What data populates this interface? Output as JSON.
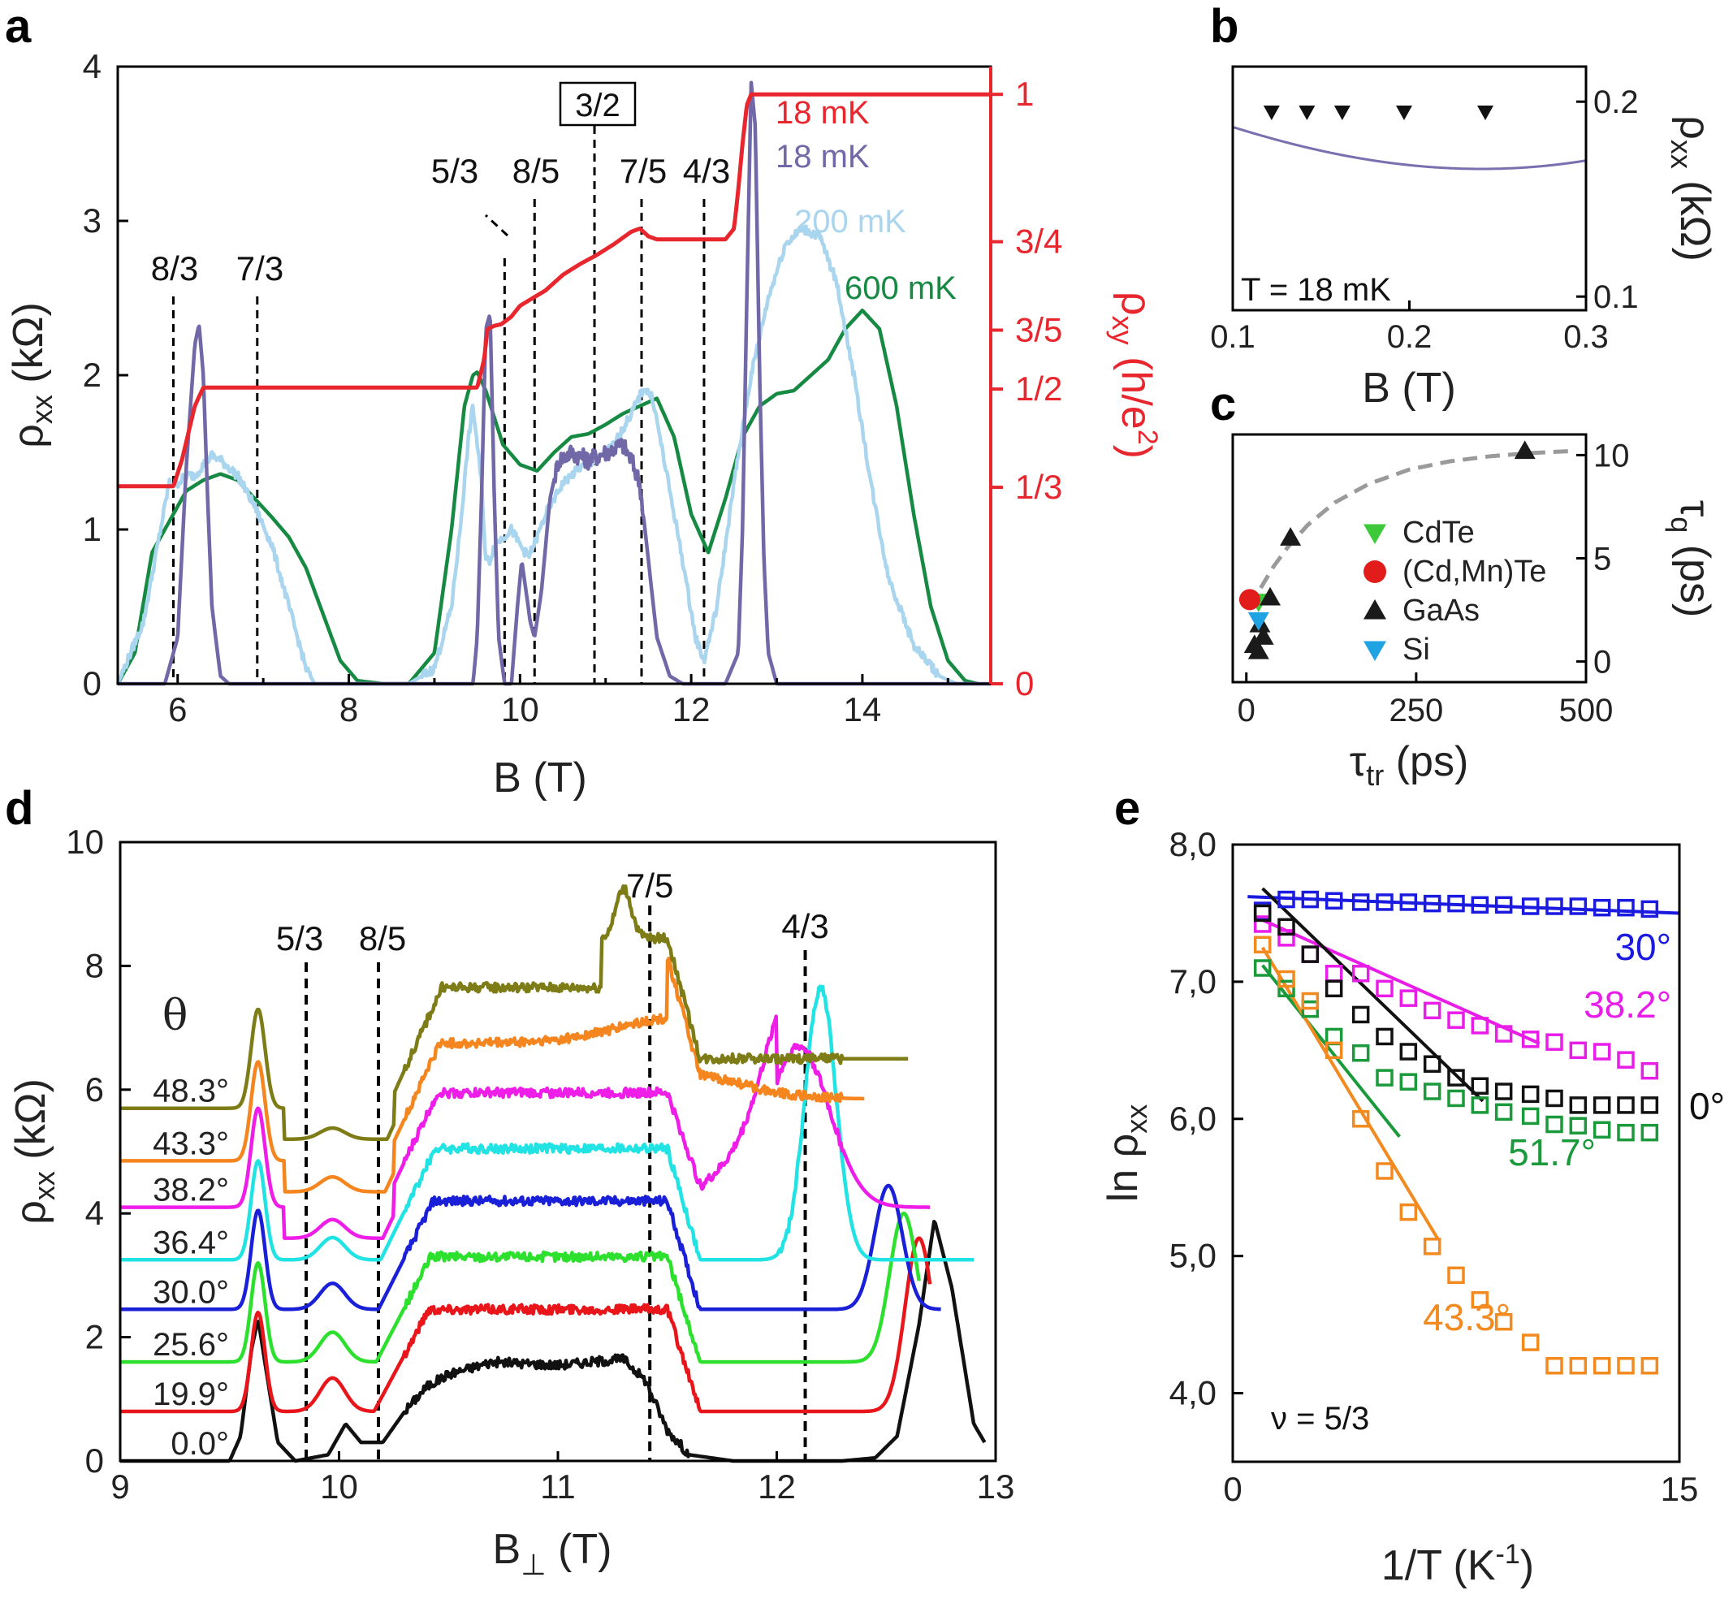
{
  "chart_data": [
    {
      "panel": "a",
      "type": "line",
      "xlabel": "B (T)",
      "ylabel": "ρxx (kΩ)",
      "y2label": "ρxy (h/e2)",
      "xlim": [
        5.3,
        15.5
      ],
      "ylim": [
        0,
        4
      ],
      "xticks": [
        "6",
        "8",
        "10",
        "12",
        "14"
      ],
      "yticks": [
        "0",
        "1",
        "2",
        "3",
        "4"
      ],
      "y2ticks": [
        "0",
        "1/3",
        "1/2",
        "3/5",
        "3/4",
        "1"
      ],
      "fraction_labels": [
        "8/3",
        "7/3",
        "5/3",
        "8/5",
        "3/2",
        "7/5",
        "4/3"
      ],
      "fraction_positions": [
        5.95,
        6.93,
        9.82,
        10.17,
        10.87,
        11.42,
        12.15
      ],
      "legend": [
        "18 mK",
        "18 mK",
        "200 mK",
        "600 mK"
      ],
      "colors": [
        "#e8262d",
        "#7168a8",
        "#a9d5ee",
        "#168a43"
      ],
      "series": [
        {
          "name": "ρxy 18 mK",
          "color": "#e8262d",
          "x": [
            5.3,
            5.95,
            6.05,
            6.2,
            6.3,
            9.5,
            9.58,
            9.62,
            9.7,
            9.78,
            9.9,
            10.0,
            10.15,
            10.3,
            10.5,
            10.7,
            10.9,
            11.1,
            11.3,
            11.4,
            11.5,
            11.6,
            12.4,
            12.5,
            12.55,
            12.6,
            12.65,
            12.7,
            15.5
          ],
          "values": [
            1.28,
            1.28,
            1.45,
            1.8,
            1.92,
            1.92,
            2.1,
            2.3,
            2.32,
            2.33,
            2.38,
            2.45,
            2.5,
            2.55,
            2.65,
            2.72,
            2.78,
            2.85,
            2.93,
            2.95,
            2.9,
            2.88,
            2.88,
            2.95,
            3.2,
            3.5,
            3.75,
            3.82,
            3.82
          ]
        },
        {
          "name": "ρxx 18 mK",
          "color": "#7168a8",
          "x": [
            5.3,
            5.85,
            6.0,
            6.1,
            6.2,
            6.25,
            6.3,
            6.35,
            6.4,
            6.5,
            6.6,
            9.45,
            9.5,
            9.55,
            9.6,
            9.65,
            9.7,
            9.75,
            9.82,
            9.9,
            9.97,
            10.02,
            10.07,
            10.12,
            10.17,
            10.25,
            10.35,
            10.45,
            10.6,
            10.8,
            11.0,
            11.2,
            11.3,
            11.4,
            11.5,
            11.6,
            11.75,
            11.9,
            12.4,
            12.55,
            12.6,
            12.65,
            12.7,
            12.75,
            12.8,
            12.85,
            12.9,
            13.0,
            15.5
          ],
          "values": [
            0,
            0,
            0.3,
            1.4,
            2.2,
            2.33,
            2.0,
            1.2,
            0.5,
            0.05,
            0,
            0,
            0.3,
            1.2,
            2.3,
            2.4,
            1.2,
            0.3,
            0,
            0,
            0.5,
            0.8,
            0.6,
            0.4,
            0.3,
            0.6,
            1.2,
            1.45,
            1.5,
            1.45,
            1.5,
            1.55,
            1.45,
            1.3,
            0.8,
            0.3,
            0.05,
            0,
            0,
            0.2,
            1.0,
            2.5,
            3.9,
            3.6,
            2.0,
            0.8,
            0.2,
            0,
            0
          ]
        },
        {
          "name": "ρxx 200 mK",
          "color": "#a9d5ee",
          "x": [
            5.3,
            5.6,
            5.8,
            5.9,
            6.0,
            6.1,
            6.2,
            6.3,
            6.4,
            6.5,
            6.7,
            6.9,
            7.1,
            7.3,
            7.5,
            7.6,
            8.7,
            9.0,
            9.2,
            9.3,
            9.4,
            9.45,
            9.55,
            9.6,
            9.65,
            9.7,
            9.8,
            9.9,
            10.0,
            10.1,
            10.2,
            10.3,
            10.5,
            10.7,
            10.9,
            11.1,
            11.3,
            11.45,
            11.55,
            11.7,
            11.9,
            12.05,
            12.15,
            12.3,
            12.5,
            12.7,
            12.9,
            13.1,
            13.3,
            13.5,
            13.7,
            13.9,
            14.1,
            14.3,
            14.6,
            14.9,
            15.1,
            15.2
          ],
          "values": [
            0,
            0.4,
            1.0,
            1.3,
            1.3,
            1.35,
            1.35,
            1.42,
            1.48,
            1.45,
            1.35,
            1.15,
            0.9,
            0.5,
            0.1,
            0,
            0,
            0.1,
            0.5,
            1.0,
            1.6,
            1.8,
            1.3,
            0.8,
            0.8,
            0.9,
            0.95,
            1.0,
            0.9,
            0.82,
            0.95,
            1.1,
            1.3,
            1.4,
            1.45,
            1.55,
            1.75,
            1.92,
            1.85,
            1.4,
            0.8,
            0.3,
            0.15,
            0.5,
            1.3,
            2.0,
            2.5,
            2.85,
            2.95,
            2.9,
            2.6,
            2.0,
            1.3,
            0.7,
            0.25,
            0.05,
            0,
            0
          ]
        },
        {
          "name": "ρxx 600 mK",
          "color": "#168a43",
          "x": [
            5.3,
            5.5,
            5.7,
            5.9,
            6.1,
            6.3,
            6.5,
            6.7,
            6.9,
            7.1,
            7.3,
            7.5,
            7.7,
            7.9,
            8.1,
            8.4,
            8.7,
            9.0,
            9.2,
            9.35,
            9.45,
            9.5,
            9.6,
            9.8,
            10.0,
            10.2,
            10.4,
            10.6,
            10.8,
            11.0,
            11.2,
            11.4,
            11.6,
            11.8,
            12.0,
            12.2,
            12.4,
            12.6,
            12.8,
            13.0,
            13.2,
            13.4,
            13.6,
            13.8,
            14.0,
            14.2,
            14.4,
            14.6,
            14.8,
            15.0,
            15.2,
            15.35
          ],
          "values": [
            0,
            0.2,
            0.85,
            1.05,
            1.25,
            1.32,
            1.36,
            1.32,
            1.2,
            1.08,
            0.95,
            0.75,
            0.45,
            0.15,
            0.02,
            0,
            0,
            0.2,
            1.0,
            1.8,
            2.0,
            2.02,
            1.9,
            1.55,
            1.42,
            1.38,
            1.5,
            1.6,
            1.62,
            1.68,
            1.75,
            1.8,
            1.85,
            1.6,
            1.1,
            0.85,
            1.2,
            1.6,
            1.8,
            1.88,
            1.9,
            2.0,
            2.1,
            2.3,
            2.42,
            2.3,
            1.8,
            1.1,
            0.5,
            0.15,
            0.02,
            0
          ]
        }
      ]
    },
    {
      "panel": "b",
      "type": "line",
      "xlabel": "B (T)",
      "ylabel": "ρxx (kΩ)",
      "xlim": [
        0.1,
        0.3
      ],
      "ylim": [
        0.093,
        0.218
      ],
      "xticks": [
        "0.1",
        "0.2",
        "0.3"
      ],
      "yticks": [
        "0.1",
        "0.2"
      ],
      "annotation": "T = 18 mK",
      "marker_positions": [
        0.122,
        0.142,
        0.162,
        0.197,
        0.243
      ]
    },
    {
      "panel": "c",
      "type": "scatter",
      "xlabel": "τtr (ps)",
      "ylabel": "τq (ps)",
      "xlim": [
        -20,
        500
      ],
      "ylim": [
        -1,
        11
      ],
      "xticks": [
        "0",
        "250",
        "500"
      ],
      "yticks": [
        "0",
        "5",
        "10"
      ],
      "legend": [
        "CdTe",
        "(Cd,Mn)Te",
        "GaAs",
        "Si"
      ],
      "series": [
        {
          "name": "CdTe",
          "color": "#3dc93a",
          "marker": "triangle-down",
          "x": [
            18
          ],
          "values": [
            2.9
          ]
        },
        {
          "name": "(Cd,Mn)Te",
          "color": "#e21b1b",
          "marker": "circle",
          "x": [
            5
          ],
          "values": [
            3.0
          ]
        },
        {
          "name": "GaAs",
          "color": "#1a1a1a",
          "marker": "triangle-up",
          "x": [
            410,
            65,
            35,
            20,
            12,
            25,
            18
          ],
          "values": [
            10.2,
            6.0,
            3.1,
            1.8,
            0.8,
            1.2,
            0.5
          ]
        },
        {
          "name": "Si",
          "color": "#1fa3e3",
          "marker": "triangle-down",
          "x": [
            18
          ],
          "values": [
            2.0
          ]
        }
      ],
      "fit_x": [
        5,
        20,
        40,
        60,
        90,
        130,
        180,
        240,
        300,
        360,
        420,
        480
      ],
      "fit_y": [
        2.6,
        3.5,
        4.6,
        5.5,
        6.6,
        7.7,
        8.6,
        9.3,
        9.7,
        9.95,
        10.1,
        10.2
      ]
    },
    {
      "panel": "d",
      "type": "line",
      "xlabel": "B⊥ (T)",
      "ylabel": "ρxx (kΩ)",
      "xlim": [
        9,
        13
      ],
      "ylim": [
        0,
        10
      ],
      "xticks": [
        "9",
        "10",
        "11",
        "12",
        "13"
      ],
      "yticks": [
        "0",
        "2",
        "4",
        "6",
        "8",
        "10"
      ],
      "legend_title": "θ",
      "fraction_labels": [
        "5/3",
        "8/5",
        "7/5",
        "4/3"
      ],
      "fraction_positions": [
        9.85,
        10.18,
        11.42,
        12.13
      ],
      "series": [
        {
          "name": "0.0°",
          "color": "#111111",
          "offset": 0.0
        },
        {
          "name": "19.9°",
          "color": "#e8161b",
          "offset": 0.8
        },
        {
          "name": "25.6°",
          "color": "#2ee02e",
          "offset": 1.6
        },
        {
          "name": "30.0°",
          "color": "#1a1fd8",
          "offset": 2.45
        },
        {
          "name": "36.4°",
          "color": "#22e3e3",
          "offset": 3.25
        },
        {
          "name": "38.2°",
          "color": "#ee1ee8",
          "offset": 4.1
        },
        {
          "name": "43.3°",
          "color": "#f5861f",
          "offset": 4.85
        },
        {
          "name": "48.3°",
          "color": "#7d7c16",
          "offset": 5.7
        }
      ]
    },
    {
      "panel": "e",
      "type": "scatter",
      "xlabel": "1/T (K-1)",
      "ylabel": "ln ρxx",
      "xlim": [
        0,
        15
      ],
      "ylim": [
        3.5,
        8.0
      ],
      "xticks": [
        "0",
        "15"
      ],
      "yticks": [
        "4,0",
        "5,0",
        "6,0",
        "7,0",
        "8,0"
      ],
      "annotation": "ν = 5/3",
      "series": [
        {
          "name": "30°",
          "color": "#1a1ae0",
          "x": [
            1.0,
            1.8,
            2.6,
            3.4,
            4.3,
            5.1,
            5.9,
            6.7,
            7.5,
            8.3,
            9.1,
            10.0,
            10.8,
            11.6,
            12.4,
            13.2,
            14.0
          ],
          "values": [
            7.52,
            7.6,
            7.6,
            7.59,
            7.58,
            7.58,
            7.58,
            7.57,
            7.57,
            7.56,
            7.56,
            7.55,
            7.55,
            7.55,
            7.54,
            7.54,
            7.53
          ],
          "fit_x": [
            0.5,
            15
          ],
          "fit_y": [
            7.62,
            7.5
          ]
        },
        {
          "name": "38.2°",
          "color": "#e81ee8",
          "x": [
            1.0,
            1.8,
            2.6,
            3.4,
            4.3,
            5.1,
            5.9,
            6.7,
            7.5,
            8.3,
            9.1,
            10.0,
            10.8,
            11.6,
            12.4,
            13.2,
            14.0
          ],
          "values": [
            7.42,
            7.32,
            7.2,
            7.06,
            7.06,
            6.95,
            6.88,
            6.79,
            6.72,
            6.68,
            6.62,
            6.58,
            6.56,
            6.5,
            6.49,
            6.43,
            6.35
          ],
          "fit_x": [
            1.0,
            10.3
          ],
          "fit_y": [
            7.45,
            6.55
          ]
        },
        {
          "name": "0°",
          "color": "#111111",
          "x": [
            1.0,
            1.8,
            2.6,
            3.4,
            4.3,
            5.1,
            5.9,
            6.7,
            7.5,
            8.3,
            9.1,
            10.0,
            10.8,
            11.6,
            12.4,
            13.2,
            14.0
          ],
          "values": [
            7.5,
            7.4,
            7.2,
            6.95,
            6.76,
            6.6,
            6.49,
            6.4,
            6.3,
            6.24,
            6.2,
            6.18,
            6.15,
            6.1,
            6.1,
            6.1,
            6.1
          ],
          "fit_x": [
            1.0,
            8.4
          ],
          "fit_y": [
            7.68,
            6.13
          ]
        },
        {
          "name": "51.7°",
          "color": "#1a9a3a",
          "x": [
            1.0,
            1.8,
            2.6,
            3.4,
            4.3,
            5.1,
            5.9,
            6.7,
            7.5,
            8.3,
            9.1,
            10.0,
            10.8,
            11.6,
            12.4,
            13.2,
            14.0
          ],
          "values": [
            7.1,
            6.95,
            6.8,
            6.6,
            6.48,
            6.3,
            6.27,
            6.2,
            6.15,
            6.1,
            6.05,
            6.02,
            5.96,
            5.95,
            5.92,
            5.9,
            5.9
          ],
          "fit_x": [
            1.0,
            5.6
          ],
          "fit_y": [
            7.12,
            5.87
          ]
        },
        {
          "name": "43.3°",
          "color": "#f28a1f",
          "x": [
            1.0,
            1.8,
            2.6,
            3.4,
            4.3,
            5.1,
            5.9,
            6.7,
            7.5,
            8.3,
            9.1,
            10.0,
            10.8,
            11.6,
            12.4,
            13.2,
            14.0
          ],
          "values": [
            7.27,
            7.02,
            6.86,
            6.5,
            6.0,
            5.62,
            5.32,
            5.07,
            4.86,
            4.68,
            4.52,
            4.37,
            4.2,
            4.2,
            4.2,
            4.2,
            4.2
          ],
          "fit_x": [
            1.0,
            6.9
          ],
          "fit_y": [
            7.25,
            5.12
          ]
        }
      ]
    }
  ],
  "panel_labels": [
    "a",
    "b",
    "c",
    "d",
    "e"
  ],
  "panel_a": {
    "xlabel": "B (T)",
    "ylabel_main": "ρ",
    "ylabel_sub": "xx",
    "ylabel_unit": " (kΩ)",
    "y2label_main": "ρ",
    "y2label_sub": "xy",
    "y2label_unit": " (h/e",
    "y2label_sup": "2",
    "y2label_close": ")",
    "boxed_label": "3/2"
  },
  "panel_b": {
    "xlabel": "B (T)",
    "ylabel_main": "ρ",
    "ylabel_sub": "xx",
    "ylabel_unit": " (kΩ)",
    "annotation": "T = 18 mK"
  },
  "panel_c": {
    "xlabel_main": "τ",
    "xlabel_sub": "tr",
    "xlabel_unit": " (ps)",
    "ylabel_main": "τ",
    "ylabel_sub": "q",
    "ylabel_unit": " (ps)"
  },
  "panel_d": {
    "xlabel_main": "B",
    "xlabel_sub": "⊥",
    "xlabel_unit": " (T)",
    "ylabel_main": "ρ",
    "ylabel_sub": "xx",
    "ylabel_unit": " (kΩ)",
    "theta": "θ"
  },
  "panel_e": {
    "xlabel_main": "1/T (K",
    "xlabel_sup": "-1",
    "xlabel_close": ")",
    "ylabel_main": "ln ρ",
    "ylabel_sub": "xx",
    "annotation": "ν = 5/3"
  }
}
